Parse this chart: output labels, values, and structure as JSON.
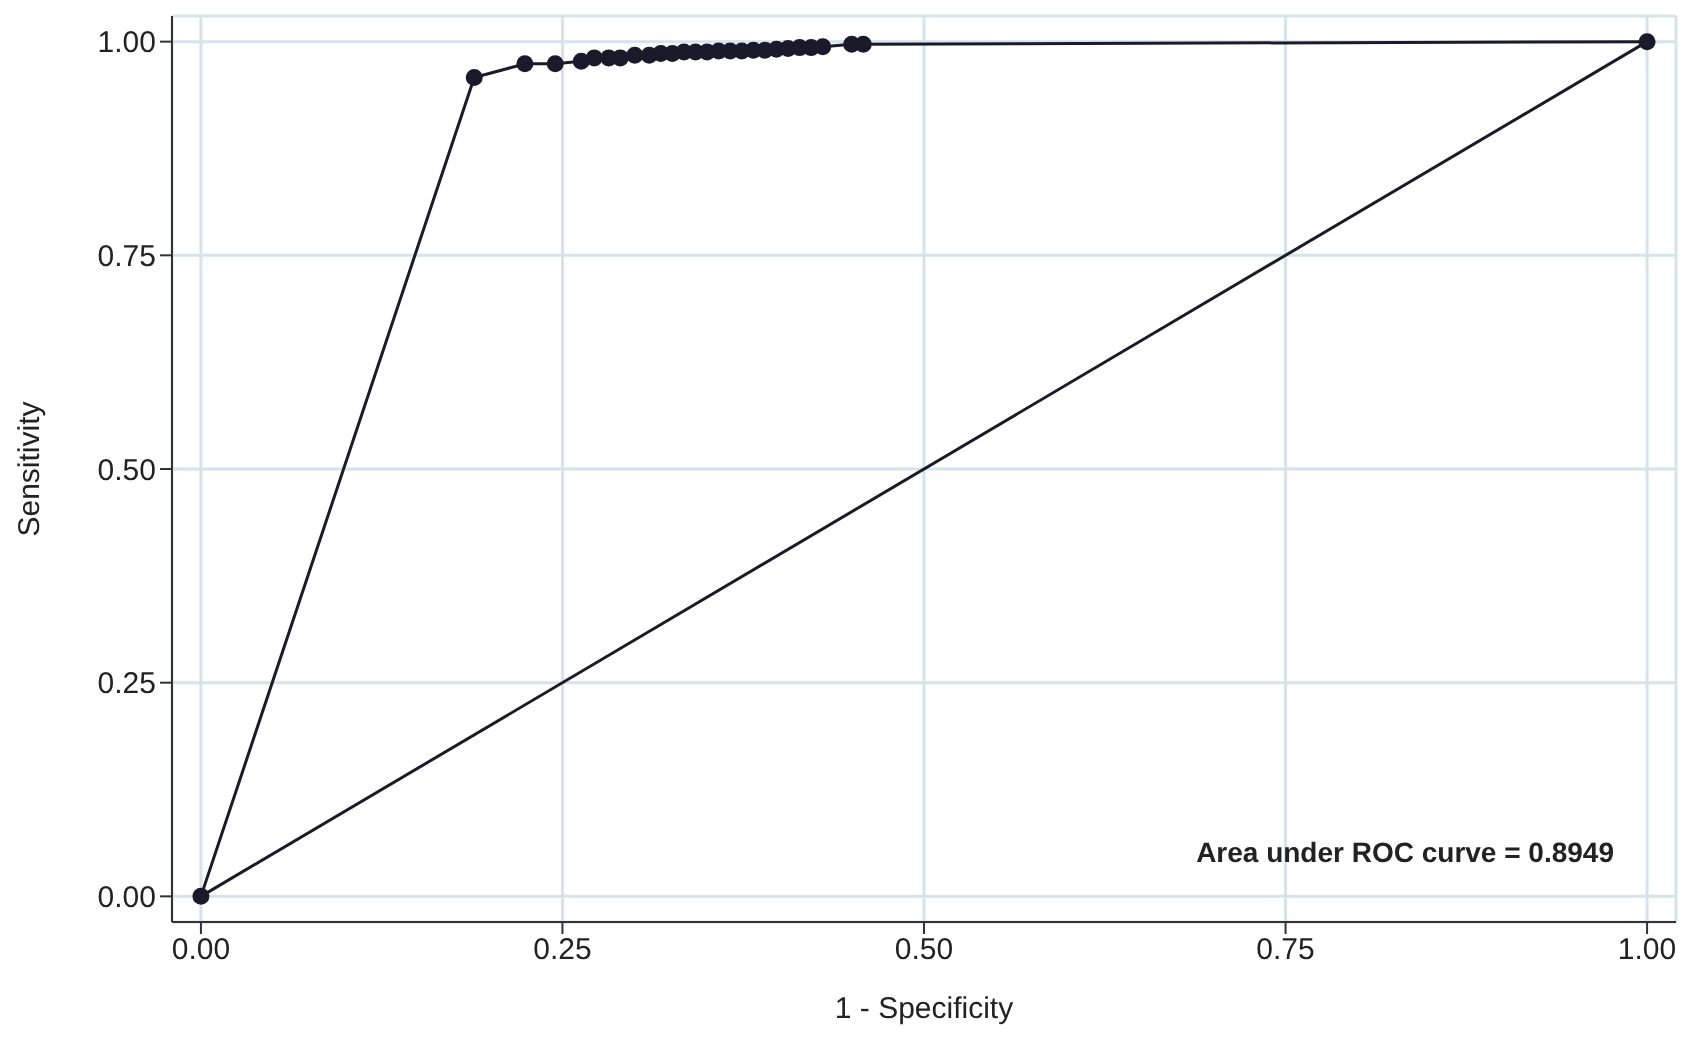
{
  "chart_data": {
    "type": "line",
    "xlabel": "1 - Specificity",
    "ylabel": "Sensitivity",
    "xlim": [
      -0.02,
      1.02
    ],
    "ylim": [
      -0.03,
      1.03
    ],
    "xticks": [
      {
        "value": 0,
        "label": "0.00"
      },
      {
        "value": 0.25,
        "label": "0.25"
      },
      {
        "value": 0.5,
        "label": "0.50"
      },
      {
        "value": 0.75,
        "label": "0.75"
      },
      {
        "value": 1,
        "label": "1.00"
      }
    ],
    "yticks": [
      {
        "value": 0,
        "label": "0.00"
      },
      {
        "value": 0.25,
        "label": "0.25"
      },
      {
        "value": 0.5,
        "label": "0.50"
      },
      {
        "value": 0.75,
        "label": "0.75"
      },
      {
        "value": 1,
        "label": "1.00"
      }
    ],
    "grid": true,
    "annotations": [
      "Area under ROC curve = 0.8949"
    ],
    "series": [
      {
        "color": "#1a1a2a",
        "marker": "circle",
        "x": [
          0,
          0.189,
          0.224,
          0.245,
          0.263,
          0.272,
          0.282,
          0.29,
          0.3,
          0.31,
          0.318,
          0.326,
          0.334,
          0.342,
          0.35,
          0.358,
          0.366,
          0.374,
          0.382,
          0.39,
          0.398,
          0.406,
          0.414,
          0.422,
          0.43,
          0.45,
          0.458,
          1
        ],
        "values": [
          0,
          0.958,
          0.974,
          0.974,
          0.977,
          0.981,
          0.981,
          0.981,
          0.984,
          0.984,
          0.986,
          0.986,
          0.988,
          0.988,
          0.988,
          0.989,
          0.989,
          0.989,
          0.99,
          0.99,
          0.991,
          0.992,
          0.993,
          0.993,
          0.994,
          0.997,
          0.997,
          1
        ]
      },
      {
        "color": "#1a1a2a",
        "marker": "none",
        "x": [
          0,
          1
        ],
        "values": [
          0,
          1
        ]
      }
    ]
  }
}
